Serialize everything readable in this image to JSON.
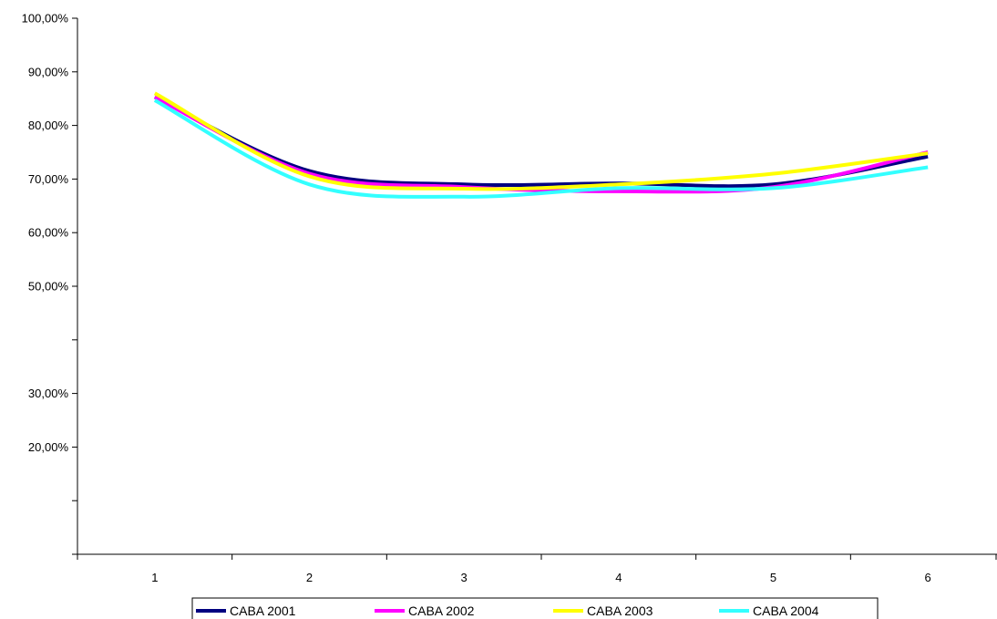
{
  "chart_data": {
    "type": "line",
    "title": "",
    "xlabel": "",
    "ylabel": "",
    "categories": [
      "1",
      "2",
      "3",
      "4",
      "5",
      "6"
    ],
    "y_tick_labels": [
      {
        "value": 1.0,
        "label": "100,00%"
      },
      {
        "value": 0.9,
        "label": "90,00%"
      },
      {
        "value": 0.8,
        "label": "80,00%"
      },
      {
        "value": 0.7,
        "label": "70,00%"
      },
      {
        "value": 0.6,
        "label": "60,00%"
      },
      {
        "value": 0.5,
        "label": "50,00%"
      },
      {
        "value": 0.4,
        "label": ""
      },
      {
        "value": 0.3,
        "label": "30,00%"
      },
      {
        "value": 0.2,
        "label": "20,00%"
      },
      {
        "value": 0.1,
        "label": ""
      },
      {
        "value": 0.0,
        "label": ""
      }
    ],
    "ylim": [
      0,
      1
    ],
    "grid": false,
    "legend_position": "bottom",
    "series": [
      {
        "name": "CABA 2001",
        "color": "#000080",
        "values": [
          0.853,
          0.715,
          0.69,
          0.692,
          0.69,
          0.742
        ]
      },
      {
        "name": "CABA 2002",
        "color": "#ff00ff",
        "values": [
          0.853,
          0.71,
          0.685,
          0.677,
          0.685,
          0.75
        ]
      },
      {
        "name": "CABA 2003",
        "color": "#ffff00",
        "values": [
          0.86,
          0.705,
          0.682,
          0.69,
          0.71,
          0.748
        ]
      },
      {
        "name": "CABA 2004",
        "color": "#33ffff",
        "values": [
          0.847,
          0.69,
          0.667,
          0.683,
          0.683,
          0.722
        ]
      }
    ]
  }
}
